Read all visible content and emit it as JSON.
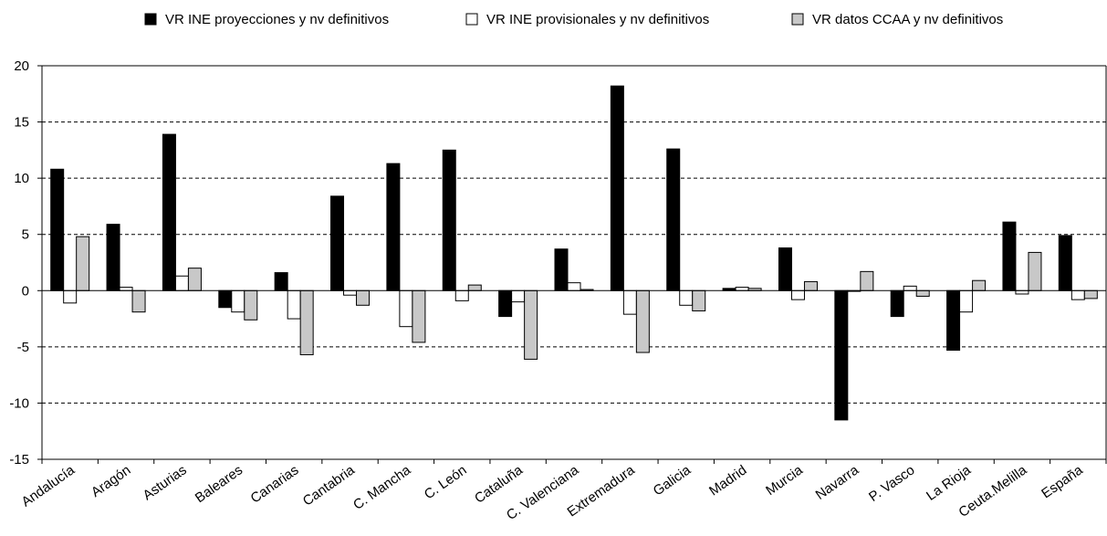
{
  "chart_data": {
    "type": "bar",
    "categories": [
      "Andalucía",
      "Aragón",
      "Asturias",
      "Baleares",
      "Canarias",
      "Cantabria",
      "C. Mancha",
      "C. León",
      "Cataluña",
      "C. Valenciana",
      "Extremadura",
      "Galicia",
      "Madrid",
      "Murcia",
      "Navarra",
      "P. Vasco",
      "La Rioja",
      "Ceuta.Melilla",
      "España"
    ],
    "series": [
      {
        "name": "VR INE proyecciones y nv definitivos",
        "color": "#000000",
        "values": [
          10.8,
          5.9,
          13.9,
          -1.5,
          1.6,
          8.4,
          11.3,
          12.5,
          -2.3,
          3.7,
          18.2,
          12.6,
          0.2,
          3.8,
          -11.5,
          -2.3,
          -5.3,
          6.1,
          4.9
        ]
      },
      {
        "name": "VR INE provisionales y nv definitivos",
        "color": "#ffffff",
        "values": [
          -1.1,
          0.3,
          1.3,
          -1.9,
          -2.5,
          -0.4,
          -3.2,
          -0.9,
          -1.0,
          0.7,
          -2.1,
          -1.3,
          0.3,
          -0.8,
          0.0,
          0.4,
          -1.9,
          -0.3,
          -0.8
        ]
      },
      {
        "name": "VR datos CCAA y nv definitivos",
        "color": "#c8c8c8",
        "values": [
          4.8,
          -1.9,
          2.0,
          -2.6,
          -5.7,
          -1.3,
          -4.6,
          0.5,
          -6.1,
          0.1,
          -5.5,
          -1.8,
          0.2,
          0.8,
          1.7,
          -0.5,
          0.9,
          3.4,
          -0.7
        ]
      }
    ],
    "ylim": [
      -15,
      20
    ],
    "yticks": [
      -15,
      -10,
      -5,
      0,
      5,
      10,
      15,
      20
    ],
    "grid": "horizontal-dashed",
    "legend_position": "top"
  }
}
